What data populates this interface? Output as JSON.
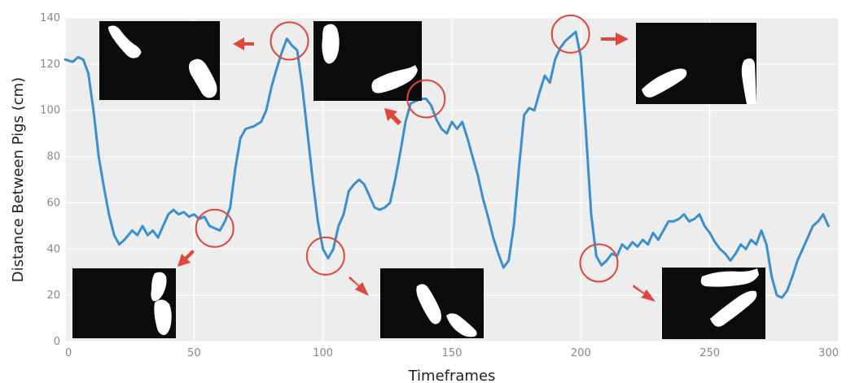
{
  "chart_data": {
    "type": "line",
    "xlabel": "Timeframes",
    "ylabel": "Distance Between Pigs (cm)",
    "xlim": [
      0,
      300
    ],
    "ylim": [
      0,
      140
    ],
    "xticks": [
      "0",
      "50",
      "100",
      "150",
      "200",
      "250",
      "300"
    ],
    "yticks": [
      "0",
      "20",
      "40",
      "60",
      "80",
      "100",
      "120",
      "140"
    ],
    "grid": true,
    "series": [
      {
        "color": "#3a8fd0",
        "points": [
          [
            0,
            122
          ],
          [
            3,
            121
          ],
          [
            5,
            123
          ],
          [
            7,
            122
          ],
          [
            9,
            116
          ],
          [
            11,
            100
          ],
          [
            13,
            80
          ],
          [
            15,
            67
          ],
          [
            17,
            55
          ],
          [
            19,
            46
          ],
          [
            21,
            42
          ],
          [
            23,
            44
          ],
          [
            26,
            48
          ],
          [
            28,
            46
          ],
          [
            30,
            50
          ],
          [
            32,
            46
          ],
          [
            34,
            48
          ],
          [
            36,
            45
          ],
          [
            38,
            50
          ],
          [
            40,
            55
          ],
          [
            42,
            57
          ],
          [
            44,
            55
          ],
          [
            46,
            56
          ],
          [
            48,
            54
          ],
          [
            50,
            55
          ],
          [
            52,
            53
          ],
          [
            54,
            54
          ],
          [
            56,
            50
          ],
          [
            58,
            49
          ],
          [
            60,
            48
          ],
          [
            62,
            52
          ],
          [
            64,
            58
          ],
          [
            66,
            75
          ],
          [
            68,
            88
          ],
          [
            70,
            92
          ],
          [
            73,
            93
          ],
          [
            76,
            95
          ],
          [
            78,
            100
          ],
          [
            80,
            110
          ],
          [
            82,
            118
          ],
          [
            84,
            125
          ],
          [
            86,
            131
          ],
          [
            88,
            128
          ],
          [
            90,
            126
          ],
          [
            92,
            110
          ],
          [
            94,
            90
          ],
          [
            96,
            70
          ],
          [
            98,
            52
          ],
          [
            100,
            40
          ],
          [
            102,
            36
          ],
          [
            104,
            40
          ],
          [
            106,
            50
          ],
          [
            108,
            55
          ],
          [
            110,
            65
          ],
          [
            112,
            68
          ],
          [
            114,
            70
          ],
          [
            116,
            68
          ],
          [
            118,
            63
          ],
          [
            120,
            58
          ],
          [
            122,
            57
          ],
          [
            124,
            58
          ],
          [
            126,
            60
          ],
          [
            128,
            70
          ],
          [
            130,
            82
          ],
          [
            132,
            95
          ],
          [
            134,
            103
          ],
          [
            136,
            104
          ],
          [
            138,
            105
          ],
          [
            140,
            105
          ],
          [
            142,
            102
          ],
          [
            144,
            96
          ],
          [
            146,
            92
          ],
          [
            148,
            90
          ],
          [
            150,
            95
          ],
          [
            152,
            92
          ],
          [
            154,
            95
          ],
          [
            156,
            88
          ],
          [
            158,
            80
          ],
          [
            160,
            72
          ],
          [
            162,
            62
          ],
          [
            164,
            54
          ],
          [
            166,
            45
          ],
          [
            168,
            38
          ],
          [
            170,
            32
          ],
          [
            172,
            35
          ],
          [
            174,
            50
          ],
          [
            176,
            75
          ],
          [
            178,
            98
          ],
          [
            180,
            101
          ],
          [
            182,
            100
          ],
          [
            184,
            108
          ],
          [
            186,
            115
          ],
          [
            188,
            112
          ],
          [
            190,
            122
          ],
          [
            192,
            127
          ],
          [
            194,
            130
          ],
          [
            196,
            132
          ],
          [
            198,
            134
          ],
          [
            200,
            123
          ],
          [
            202,
            90
          ],
          [
            204,
            55
          ],
          [
            206,
            37
          ],
          [
            208,
            33
          ],
          [
            210,
            35
          ],
          [
            212,
            38
          ],
          [
            214,
            37
          ],
          [
            216,
            42
          ],
          [
            218,
            40
          ],
          [
            220,
            43
          ],
          [
            222,
            41
          ],
          [
            224,
            44
          ],
          [
            226,
            42
          ],
          [
            228,
            47
          ],
          [
            230,
            44
          ],
          [
            232,
            48
          ],
          [
            234,
            52
          ],
          [
            236,
            52
          ],
          [
            238,
            53
          ],
          [
            240,
            55
          ],
          [
            242,
            52
          ],
          [
            244,
            53
          ],
          [
            246,
            55
          ],
          [
            248,
            50
          ],
          [
            250,
            47
          ],
          [
            252,
            43
          ],
          [
            254,
            40
          ],
          [
            256,
            38
          ],
          [
            258,
            35
          ],
          [
            260,
            38
          ],
          [
            262,
            42
          ],
          [
            264,
            40
          ],
          [
            266,
            44
          ],
          [
            268,
            42
          ],
          [
            270,
            48
          ],
          [
            272,
            42
          ],
          [
            274,
            28
          ],
          [
            276,
            20
          ],
          [
            278,
            19
          ],
          [
            280,
            22
          ],
          [
            282,
            28
          ],
          [
            284,
            35
          ],
          [
            286,
            40
          ],
          [
            288,
            45
          ],
          [
            290,
            50
          ],
          [
            292,
            52
          ],
          [
            294,
            55
          ],
          [
            296,
            50
          ]
        ]
      }
    ],
    "markers": [
      {
        "x": 58,
        "y": 49
      },
      {
        "x": 87,
        "y": 130
      },
      {
        "x": 101,
        "y": 37
      },
      {
        "x": 140,
        "y": 105
      },
      {
        "x": 196,
        "y": 133
      },
      {
        "x": 207,
        "y": 34
      }
    ]
  }
}
